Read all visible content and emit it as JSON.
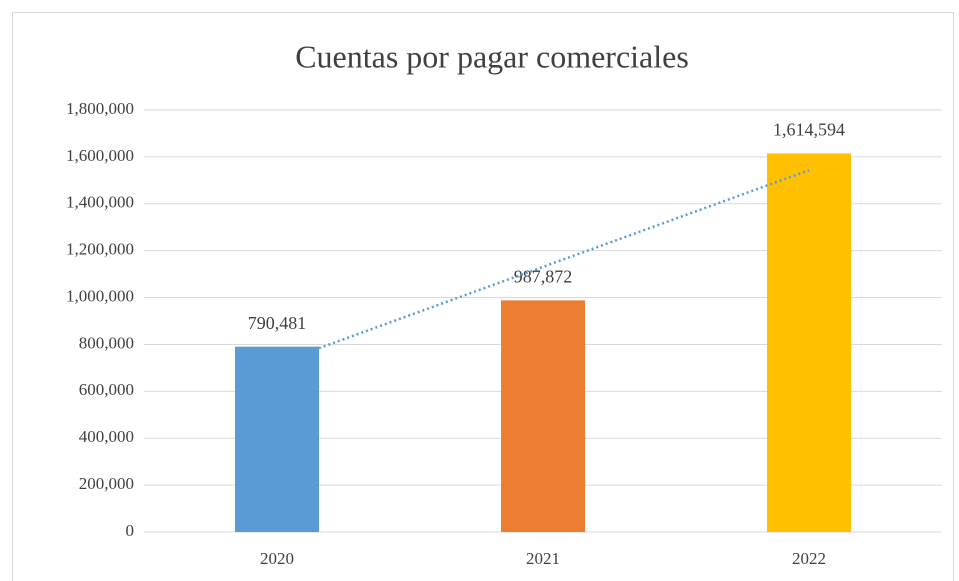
{
  "chart_data": {
    "type": "bar",
    "title": "Cuentas por pagar comerciales",
    "categories": [
      "2020",
      "2021",
      "2022"
    ],
    "values": [
      790481,
      987872,
      1614594
    ],
    "value_labels": [
      "790,481",
      "987,872",
      "1,614,594"
    ],
    "colors": [
      "#5b9bd5",
      "#ed7d31",
      "#ffc000"
    ],
    "trendline": {
      "type": "linear",
      "color": "#5b9bd5"
    },
    "ylim": [
      0,
      1800000
    ],
    "yticks": [
      0,
      {
        "value": 200000,
        "label": "200,000"
      },
      {
        "value": 400000,
        "label": "400,000"
      },
      {
        "value": 600000,
        "label": "600,000"
      },
      {
        "value": 800000,
        "label": "800,000"
      },
      {
        "value": 1000000,
        "label": "1,000,000"
      },
      {
        "value": 1200000,
        "label": "1,200,000"
      },
      {
        "value": 1400000,
        "label": "1,400,000"
      },
      {
        "value": 1600000,
        "label": "1,600,000"
      },
      {
        "value": 1800000,
        "label": "1,800,000"
      }
    ],
    "grid": true
  }
}
